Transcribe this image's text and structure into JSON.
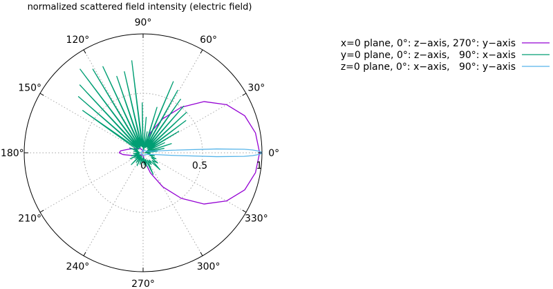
{
  "chart_data": {
    "type": "line",
    "coordinate_system": "polar",
    "title": "normalized scattered field intensity (electric field)",
    "angle_unit": "degrees",
    "angle_tick_labels": [
      "0°",
      "30°",
      "60°",
      "90°",
      "120°",
      "150°",
      "180°",
      "210°",
      "240°",
      "270°",
      "300°",
      "330°"
    ],
    "angle_ticks": [
      0,
      30,
      60,
      90,
      120,
      150,
      180,
      210,
      240,
      270,
      300,
      330
    ],
    "radial_tick_labels": [
      "0",
      "0.5",
      "1"
    ],
    "radial_ticks": [
      0,
      0.5,
      1
    ],
    "rlim": [
      0,
      1
    ],
    "grid": true,
    "legend_position": "top-right",
    "series": [
      {
        "name": "x=0 plane, 0°: z−axis, 270°: y−axis",
        "color": "#9400d3",
        "angle": [
          0,
          10,
          20,
          30,
          40,
          50,
          60,
          70,
          80,
          90,
          100,
          120,
          150,
          165,
          175,
          180,
          185,
          195,
          210,
          240,
          260,
          270,
          280,
          290,
          300,
          310,
          320,
          330,
          340,
          350,
          360
        ],
        "r": [
          0.98,
          0.96,
          0.91,
          0.81,
          0.67,
          0.5,
          0.33,
          0.18,
          0.07,
          0.01,
          0.02,
          0.04,
          0.07,
          0.12,
          0.19,
          0.2,
          0.17,
          0.09,
          0.04,
          0.02,
          0.02,
          0.02,
          0.07,
          0.18,
          0.33,
          0.5,
          0.67,
          0.81,
          0.91,
          0.96,
          0.98
        ]
      },
      {
        "name": "y=0 plane, 0°: z−axis,   90°: x−axis",
        "color": "#009e73",
        "angle": [
          0,
          4,
          6,
          8,
          12,
          15,
          18,
          22,
          25,
          28,
          31,
          34,
          37,
          40,
          43,
          46,
          49,
          52,
          55,
          58,
          61,
          64,
          67,
          70,
          73,
          76,
          79,
          82,
          85,
          88,
          91,
          94,
          97,
          100,
          103,
          106,
          109,
          112,
          115,
          118,
          121,
          124,
          127,
          130,
          133,
          136,
          139,
          142,
          145,
          150,
          155,
          160,
          165,
          170,
          175,
          180,
          185,
          190,
          195,
          200,
          205,
          210,
          215,
          220,
          225,
          230,
          235,
          240,
          245,
          250,
          255,
          260,
          265,
          270,
          275,
          280,
          285,
          290,
          295,
          300,
          305,
          310,
          315,
          320,
          325,
          330,
          335,
          340,
          345,
          350,
          355,
          360
        ],
        "r": [
          0.01,
          0.03,
          0.12,
          0.02,
          0.18,
          0.03,
          0.25,
          0.03,
          0.2,
          0.04,
          0.35,
          0.05,
          0.45,
          0.06,
          0.5,
          0.05,
          0.52,
          0.06,
          0.55,
          0.06,
          0.6,
          0.05,
          0.65,
          0.05,
          0.4,
          0.04,
          0.18,
          0.02,
          0.3,
          0.03,
          0.42,
          0.05,
          0.78,
          0.05,
          0.7,
          0.06,
          0.68,
          0.06,
          0.8,
          0.05,
          0.82,
          0.05,
          0.88,
          0.06,
          0.78,
          0.05,
          0.72,
          0.05,
          0.62,
          0.08,
          0.05,
          0.12,
          0.04,
          0.08,
          0.03,
          0.05,
          0.08,
          0.03,
          0.1,
          0.04,
          0.12,
          0.03,
          0.08,
          0.04,
          0.14,
          0.03,
          0.1,
          0.04,
          0.12,
          0.03,
          0.1,
          0.05,
          0.08,
          0.04,
          0.1,
          0.05,
          0.12,
          0.06,
          0.2,
          0.07,
          0.12,
          0.08,
          0.2,
          0.1,
          0.15,
          0.08,
          0.12,
          0.06,
          0.1,
          0.04,
          0.06,
          0.01
        ]
      },
      {
        "name": "z=0 plane, 0°: x−axis,   90°: y−axis",
        "color": "#56b4e9",
        "angle": [
          0,
          0.5,
          1,
          1.5,
          2,
          3,
          5,
          10,
          20,
          60,
          90,
          180,
          270,
          300,
          340,
          350,
          355,
          357,
          358,
          358.5,
          359,
          359.5,
          360
        ],
        "r": [
          1.0,
          0.99,
          0.96,
          0.92,
          0.85,
          0.62,
          0.25,
          0.08,
          0.04,
          0.02,
          0.02,
          0.02,
          0.02,
          0.02,
          0.04,
          0.08,
          0.25,
          0.62,
          0.85,
          0.92,
          0.96,
          0.99,
          1.0
        ]
      }
    ]
  }
}
